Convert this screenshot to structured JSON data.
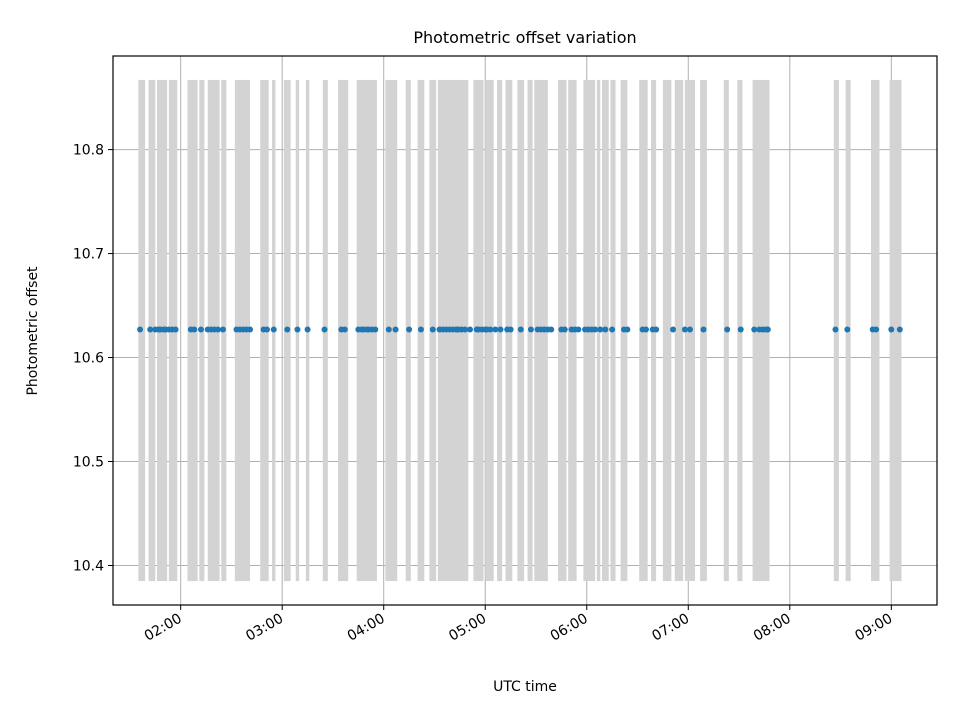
{
  "chart_data": {
    "type": "scatter",
    "title": "Photometric offset variation",
    "xlabel": "UTC time",
    "ylabel": "Photometric offset",
    "x_axis": {
      "kind": "time",
      "range": [
        "01:20",
        "09:27"
      ],
      "ticks": [
        "02:00",
        "03:00",
        "04:00",
        "05:00",
        "06:00",
        "07:00",
        "08:00",
        "09:00"
      ]
    },
    "y_axis": {
      "range": [
        10.362,
        10.89
      ],
      "ticks": [
        10.4,
        10.5,
        10.6,
        10.7,
        10.8
      ],
      "tick_labels": [
        "10.4",
        "10.5",
        "10.6",
        "10.7",
        "10.8"
      ]
    },
    "grid": true,
    "legend": "none",
    "series": [
      {
        "color": "#1f77b4",
        "marker": "point",
        "y_constant": 10.627,
        "x": [
          "01:36",
          "01:42",
          "01:45",
          "01:47",
          "01:48",
          "01:50",
          "01:51",
          "01:53",
          "01:55",
          "01:57",
          "02:06",
          "02:08",
          "02:12",
          "02:16",
          "02:18",
          "02:20",
          "02:22",
          "02:25",
          "02:33",
          "02:35",
          "02:37",
          "02:39",
          "02:41",
          "02:49",
          "02:51",
          "02:55",
          "03:03",
          "03:09",
          "03:15",
          "03:25",
          "03:35",
          "03:37",
          "03:45",
          "03:47",
          "03:48",
          "03:50",
          "03:51",
          "03:53",
          "03:55",
          "04:03",
          "04:07",
          "04:15",
          "04:22",
          "04:29",
          "04:33",
          "04:35",
          "04:37",
          "04:39",
          "04:41",
          "04:43",
          "04:44",
          "04:46",
          "04:48",
          "04:51",
          "04:55",
          "04:56",
          "04:58",
          "05:00",
          "05:01",
          "05:03",
          "05:06",
          "05:09",
          "05:13",
          "05:15",
          "05:21",
          "05:27",
          "05:31",
          "05:33",
          "05:35",
          "05:37",
          "05:39",
          "05:45",
          "05:47",
          "05:51",
          "05:53",
          "05:55",
          "05:59",
          "06:01",
          "06:03",
          "06:05",
          "06:08",
          "06:11",
          "06:15",
          "06:22",
          "06:24",
          "06:33",
          "06:35",
          "06:39",
          "06:41",
          "06:51",
          "06:58",
          "07:01",
          "07:09",
          "07:23",
          "07:31",
          "07:39",
          "07:42",
          "07:44",
          "07:46",
          "07:47",
          "08:27",
          "08:34",
          "08:49",
          "08:51",
          "09:00",
          "09:05"
        ]
      }
    ],
    "highlight_bands": {
      "color": "#d3d3d3",
      "y_range": [
        10.385,
        10.867
      ],
      "intervals": [
        [
          "01:35",
          "01:39"
        ],
        [
          "01:41",
          "01:45"
        ],
        [
          "01:46",
          "01:52"
        ],
        [
          "01:53",
          "01:58"
        ],
        [
          "02:04",
          "02:10"
        ],
        [
          "02:11",
          "02:14"
        ],
        [
          "02:16",
          "02:23"
        ],
        [
          "02:24",
          "02:27"
        ],
        [
          "02:32",
          "02:41"
        ],
        [
          "02:47",
          "02:52"
        ],
        [
          "02:54",
          "02:56"
        ],
        [
          "03:01",
          "03:05"
        ],
        [
          "03:08",
          "03:10"
        ],
        [
          "03:14",
          "03:16"
        ],
        [
          "03:24",
          "03:27"
        ],
        [
          "03:33",
          "03:39"
        ],
        [
          "03:44",
          "03:56"
        ],
        [
          "04:01",
          "04:08"
        ],
        [
          "04:13",
          "04:16"
        ],
        [
          "04:20",
          "04:24"
        ],
        [
          "04:27",
          "04:31"
        ],
        [
          "04:32",
          "04:50"
        ],
        [
          "04:53",
          "04:59"
        ],
        [
          "05:00",
          "05:05"
        ],
        [
          "05:07",
          "05:10"
        ],
        [
          "05:12",
          "05:16"
        ],
        [
          "05:19",
          "05:23"
        ],
        [
          "05:25",
          "05:28"
        ],
        [
          "05:29",
          "05:37"
        ],
        [
          "05:43",
          "05:48"
        ],
        [
          "05:49",
          "05:54"
        ],
        [
          "05:58",
          "06:05"
        ],
        [
          "06:06",
          "06:08"
        ],
        [
          "06:09",
          "06:13"
        ],
        [
          "06:14",
          "06:17"
        ],
        [
          "06:20",
          "06:24"
        ],
        [
          "06:31",
          "06:36"
        ],
        [
          "06:38",
          "06:41"
        ],
        [
          "06:45",
          "06:50"
        ],
        [
          "06:52",
          "06:57"
        ],
        [
          "06:58",
          "07:04"
        ],
        [
          "07:07",
          "07:11"
        ],
        [
          "07:21",
          "07:24"
        ],
        [
          "07:29",
          "07:32"
        ],
        [
          "07:38",
          "07:48"
        ],
        [
          "08:26",
          "08:29"
        ],
        [
          "08:33",
          "08:36"
        ],
        [
          "08:48",
          "08:53"
        ],
        [
          "08:59",
          "09:06"
        ]
      ]
    }
  }
}
